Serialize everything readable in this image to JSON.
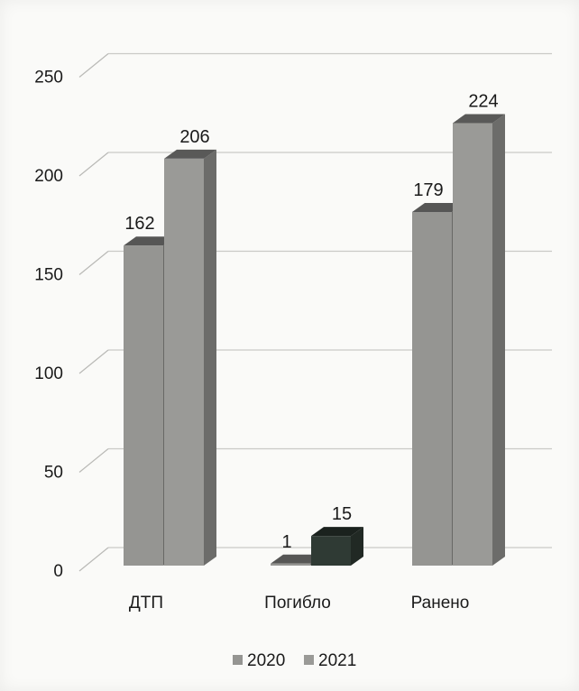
{
  "chart_data": {
    "type": "bar",
    "categories": [
      "ДТП",
      "Погибло",
      "Ранено"
    ],
    "series": [
      {
        "name": "2020",
        "values": [
          162,
          1,
          179
        ],
        "color": "#959592"
      },
      {
        "name": "2021",
        "values": [
          206,
          15,
          224
        ],
        "color": "#9a9a97"
      }
    ],
    "highlight": {
      "category_index": 1,
      "series_index": 1,
      "color": "#2f3a34"
    },
    "ylim": [
      0,
      250
    ],
    "yticks": [
      "0",
      "50",
      "100",
      "150",
      "200",
      "250"
    ],
    "grid": true,
    "legend_position": "bottom",
    "style": "3d-column"
  }
}
